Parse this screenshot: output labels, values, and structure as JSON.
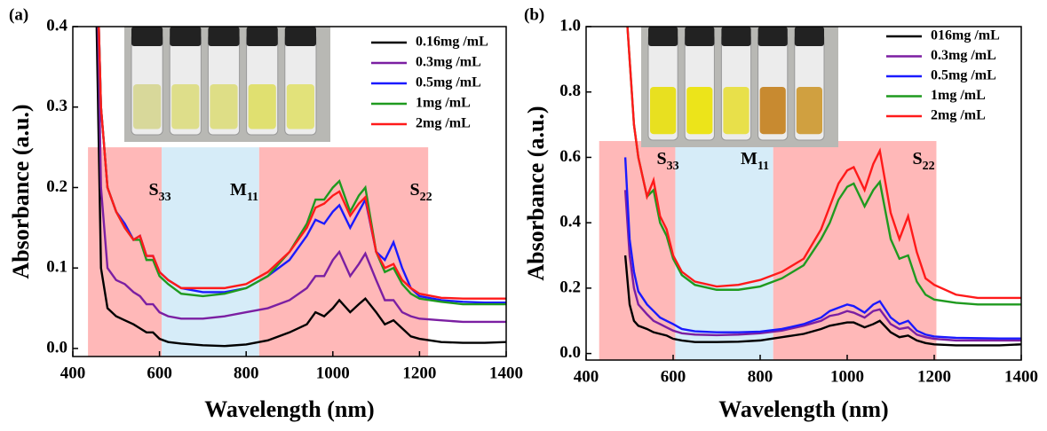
{
  "chart_data": [
    {
      "type": "line",
      "panel_label": "(a)",
      "xlabel": "Wavelength (nm)",
      "ylabel": "Absorbance (a.u.)",
      "xlim": [
        400,
        1400
      ],
      "xticks": [
        400,
        600,
        800,
        1000,
        1200,
        1400
      ],
      "ylim": [
        -0.01,
        0.4
      ],
      "yticks": [
        {
          "value": 0,
          "label": "0.0"
        },
        0.1,
        0.2,
        0.3,
        0.4
      ],
      "regions": [
        {
          "start": 435,
          "end": 605,
          "ymax": 0.25,
          "color": "#ffb8b8",
          "label": "S",
          "label_sub": "33"
        },
        {
          "start": 605,
          "end": 830,
          "ymax": 0.25,
          "color": "#d6ecf8",
          "label": "M",
          "label_sub": "11"
        },
        {
          "start": 830,
          "end": 1220,
          "ymax": 0.25,
          "color": "#ffb8b8",
          "label": "S",
          "label_sub": "22"
        }
      ],
      "x": [
        455,
        465,
        480,
        500,
        520,
        540,
        555,
        570,
        585,
        600,
        620,
        650,
        700,
        750,
        800,
        850,
        900,
        940,
        960,
        980,
        1000,
        1015,
        1040,
        1060,
        1075,
        1100,
        1120,
        1140,
        1160,
        1180,
        1200,
        1250,
        1300,
        1350,
        1400
      ],
      "series": [
        {
          "name": "0.16mg /mL",
          "color": "#000000",
          "values": [
            0.4,
            0.1,
            0.05,
            0.04,
            0.035,
            0.03,
            0.025,
            0.02,
            0.02,
            0.012,
            0.008,
            0.006,
            0.004,
            0.003,
            0.005,
            0.01,
            0.02,
            0.03,
            0.045,
            0.04,
            0.05,
            0.06,
            0.045,
            0.055,
            0.062,
            0.045,
            0.03,
            0.035,
            0.025,
            0.015,
            0.012,
            0.008,
            0.007,
            0.007,
            0.008
          ]
        },
        {
          "name": "0.3mg /mL",
          "color": "#7b1fa2",
          "values": [
            0.5,
            0.2,
            0.1,
            0.085,
            0.08,
            0.07,
            0.065,
            0.055,
            0.055,
            0.045,
            0.04,
            0.037,
            0.037,
            0.04,
            0.045,
            0.05,
            0.06,
            0.075,
            0.09,
            0.09,
            0.11,
            0.12,
            0.09,
            0.105,
            0.118,
            0.085,
            0.06,
            0.06,
            0.045,
            0.04,
            0.037,
            0.035,
            0.033,
            0.033,
            0.033
          ]
        },
        {
          "name": "0.5mg /mL",
          "color": "#1a1aff",
          "values": [
            0.5,
            0.3,
            0.2,
            0.17,
            0.155,
            0.135,
            0.14,
            0.115,
            0.115,
            0.095,
            0.085,
            0.075,
            0.07,
            0.07,
            0.075,
            0.09,
            0.11,
            0.14,
            0.16,
            0.155,
            0.17,
            0.178,
            0.15,
            0.17,
            0.185,
            0.12,
            0.11,
            0.132,
            0.1,
            0.075,
            0.065,
            0.06,
            0.058,
            0.057,
            0.057
          ]
        },
        {
          "name": "1mg /mL",
          "color": "#1f9a1f",
          "values": [
            0.5,
            0.3,
            0.2,
            0.17,
            0.15,
            0.135,
            0.135,
            0.11,
            0.11,
            0.09,
            0.08,
            0.068,
            0.065,
            0.068,
            0.075,
            0.09,
            0.12,
            0.155,
            0.185,
            0.185,
            0.2,
            0.208,
            0.17,
            0.19,
            0.2,
            0.12,
            0.095,
            0.1,
            0.08,
            0.068,
            0.062,
            0.058,
            0.055,
            0.055,
            0.055
          ]
        },
        {
          "name": "2mg /mL",
          "color": "#ff1a1a",
          "values": [
            0.5,
            0.3,
            0.2,
            0.17,
            0.15,
            0.135,
            0.14,
            0.115,
            0.115,
            0.095,
            0.085,
            0.075,
            0.075,
            0.075,
            0.08,
            0.095,
            0.12,
            0.15,
            0.175,
            0.18,
            0.19,
            0.195,
            0.165,
            0.18,
            0.188,
            0.12,
            0.1,
            0.105,
            0.085,
            0.075,
            0.068,
            0.063,
            0.062,
            0.062,
            0.062
          ]
        }
      ]
    },
    {
      "type": "line",
      "panel_label": "(b)",
      "xlabel": "Wavelength (nm)",
      "ylabel": "Absorbance (a.u.)",
      "xlim": [
        400,
        1400
      ],
      "xticks": [
        400,
        600,
        800,
        1000,
        1200,
        1400
      ],
      "ylim": [
        -0.02,
        1.0
      ],
      "yticks": [
        {
          "value": 0,
          "label": "0.0"
        },
        0.2,
        0.4,
        0.6,
        0.8,
        {
          "value": 1,
          "label": "1.0"
        }
      ],
      "regions": [
        {
          "start": 430,
          "end": 605,
          "ymax": 0.65,
          "color": "#ffb8b8",
          "label": "S",
          "label_sub": "33"
        },
        {
          "start": 605,
          "end": 830,
          "ymax": 0.65,
          "color": "#d6ecf8",
          "label": "M",
          "label_sub": "11"
        },
        {
          "start": 830,
          "end": 1205,
          "ymax": 0.65,
          "color": "#ffb8b8",
          "label": "S",
          "label_sub": "22"
        }
      ],
      "x": [
        490,
        500,
        510,
        520,
        540,
        555,
        570,
        585,
        600,
        620,
        650,
        700,
        750,
        800,
        850,
        900,
        940,
        960,
        980,
        1000,
        1015,
        1040,
        1060,
        1075,
        1100,
        1120,
        1140,
        1160,
        1180,
        1200,
        1250,
        1300,
        1350,
        1400
      ],
      "series": [
        {
          "name": "016mg /mL",
          "color": "#000000",
          "values": [
            0.3,
            0.15,
            0.1,
            0.085,
            0.075,
            0.065,
            0.06,
            0.055,
            0.045,
            0.04,
            0.035,
            0.035,
            0.036,
            0.04,
            0.05,
            0.06,
            0.075,
            0.085,
            0.09,
            0.095,
            0.095,
            0.08,
            0.09,
            0.1,
            0.065,
            0.05,
            0.055,
            0.04,
            0.032,
            0.028,
            0.025,
            0.025,
            0.025,
            0.028
          ]
        },
        {
          "name": "0.3mg /mL",
          "color": "#7b1fa2",
          "values": [
            0.5,
            0.3,
            0.2,
            0.15,
            0.12,
            0.1,
            0.09,
            0.08,
            0.07,
            0.062,
            0.058,
            0.056,
            0.058,
            0.062,
            0.07,
            0.085,
            0.1,
            0.115,
            0.12,
            0.13,
            0.125,
            0.11,
            0.13,
            0.135,
            0.09,
            0.075,
            0.08,
            0.058,
            0.05,
            0.045,
            0.04,
            0.04,
            0.04,
            0.04
          ]
        },
        {
          "name": "0.5mg /mL",
          "color": "#1a1aff",
          "values": [
            0.6,
            0.35,
            0.25,
            0.19,
            0.15,
            0.13,
            0.11,
            0.1,
            0.09,
            0.075,
            0.068,
            0.065,
            0.065,
            0.067,
            0.075,
            0.09,
            0.11,
            0.13,
            0.14,
            0.15,
            0.145,
            0.125,
            0.15,
            0.16,
            0.11,
            0.09,
            0.1,
            0.07,
            0.058,
            0.052,
            0.048,
            0.047,
            0.046,
            0.046
          ]
        },
        {
          "name": "1mg /mL",
          "color": "#1f9a1f",
          "values": [
            1.1,
            0.9,
            0.7,
            0.6,
            0.48,
            0.5,
            0.4,
            0.36,
            0.29,
            0.24,
            0.21,
            0.195,
            0.195,
            0.205,
            0.23,
            0.27,
            0.35,
            0.4,
            0.47,
            0.51,
            0.52,
            0.45,
            0.5,
            0.525,
            0.35,
            0.29,
            0.3,
            0.22,
            0.18,
            0.165,
            0.155,
            0.15,
            0.15,
            0.15
          ]
        },
        {
          "name": "2mg /mL",
          "color": "#ff1a1a",
          "values": [
            1.1,
            0.9,
            0.7,
            0.6,
            0.48,
            0.53,
            0.42,
            0.38,
            0.3,
            0.25,
            0.22,
            0.205,
            0.21,
            0.225,
            0.25,
            0.29,
            0.38,
            0.45,
            0.52,
            0.56,
            0.57,
            0.5,
            0.58,
            0.62,
            0.43,
            0.35,
            0.42,
            0.31,
            0.23,
            0.21,
            0.18,
            0.17,
            0.17,
            0.17
          ]
        }
      ]
    }
  ]
}
